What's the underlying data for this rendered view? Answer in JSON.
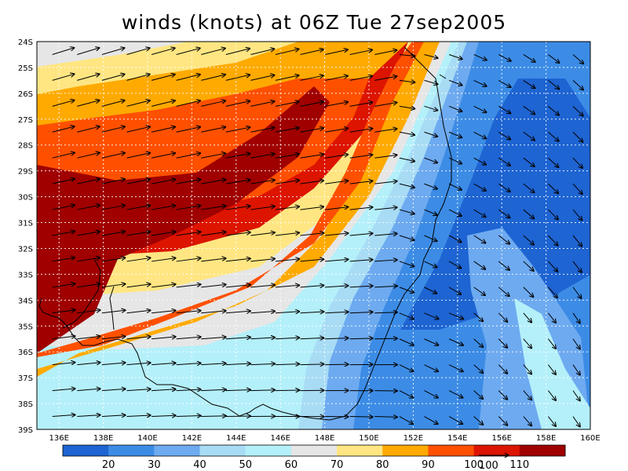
{
  "title": "winds (knots) at 06Z Tue 27sep2005",
  "map": {
    "lon_range": [
      135,
      160
    ],
    "lat_range": [
      -39,
      -24
    ],
    "lat_ticks": [
      {
        "value": -24,
        "label": "24S"
      },
      {
        "value": -25,
        "label": "25S"
      },
      {
        "value": -26,
        "label": "26S"
      },
      {
        "value": -27,
        "label": "27S"
      },
      {
        "value": -28,
        "label": "28S"
      },
      {
        "value": -29,
        "label": "29S"
      },
      {
        "value": -30,
        "label": "30S"
      },
      {
        "value": -31,
        "label": "31S"
      },
      {
        "value": -32,
        "label": "32S"
      },
      {
        "value": -33,
        "label": "33S"
      },
      {
        "value": -34,
        "label": "34S"
      },
      {
        "value": -35,
        "label": "35S"
      },
      {
        "value": -36,
        "label": "36S"
      },
      {
        "value": -37,
        "label": "37S"
      },
      {
        "value": -38,
        "label": "38S"
      },
      {
        "value": -39,
        "label": "39S"
      }
    ],
    "lon_ticks": [
      {
        "value": 136,
        "label": "136E"
      },
      {
        "value": 138,
        "label": "138E"
      },
      {
        "value": 140,
        "label": "140E"
      },
      {
        "value": 142,
        "label": "142E"
      },
      {
        "value": 144,
        "label": "144E"
      },
      {
        "value": 146,
        "label": "146E"
      },
      {
        "value": 148,
        "label": "148E"
      },
      {
        "value": 150,
        "label": "150E"
      },
      {
        "value": 152,
        "label": "152E"
      },
      {
        "value": 154,
        "label": "154E"
      },
      {
        "value": 156,
        "label": "156E"
      },
      {
        "value": 158,
        "label": "158E"
      },
      {
        "value": 160,
        "label": "160E"
      }
    ],
    "grid": "dashed"
  },
  "colorbar": {
    "levels": [
      20,
      30,
      40,
      50,
      60,
      70,
      80,
      90,
      100,
      110
    ],
    "labels": [
      "20",
      "30",
      "40",
      "50",
      "60",
      "70",
      "80",
      "90",
      "100",
      "110"
    ],
    "colors": [
      "#1e64d2",
      "#3c8ce6",
      "#6eaaf0",
      "#a8dcf5",
      "#b4f0fa",
      "#e6e6e6",
      "#ffe682",
      "#ffaa00",
      "#ff5000",
      "#dc1400",
      "#a00000"
    ]
  },
  "reference_vector": {
    "label": "100"
  }
}
